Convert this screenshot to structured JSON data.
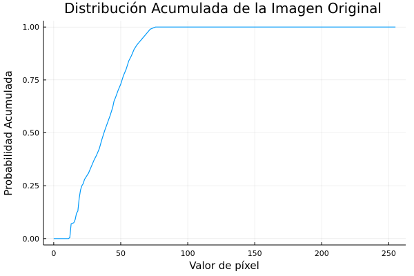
{
  "chart_data": {
    "type": "line",
    "title": "Distribución Acumulada de la Imagen Original",
    "xlabel": "Valor de píxel",
    "ylabel": "Probabilidad Acumulada",
    "xlim": [
      -7.65,
      262.65
    ],
    "ylim": [
      -0.03,
      1.03
    ],
    "xticks": [
      0,
      50,
      100,
      150,
      200,
      250
    ],
    "xtick_labels": [
      "0",
      "50",
      "100",
      "150",
      "200",
      "250"
    ],
    "yticks": [
      0,
      0.25,
      0.5,
      0.75,
      1.0
    ],
    "ytick_labels": [
      "0.00",
      "0.25",
      "0.50",
      "0.75",
      "1.00"
    ],
    "grid": true,
    "legend": "none",
    "series": [
      {
        "name": "y1",
        "color": "#009AFA",
        "x": [
          0,
          11,
          12,
          13,
          15,
          16,
          17,
          18,
          19,
          20,
          21,
          22,
          23,
          24,
          25,
          26,
          27,
          28,
          30,
          32,
          34,
          36,
          38,
          40,
          42,
          44,
          45,
          46,
          48,
          50,
          52,
          54,
          56,
          58,
          60,
          62,
          64,
          66,
          68,
          70,
          72,
          74,
          76,
          78,
          80,
          100,
          150,
          200,
          255
        ],
        "y": [
          0,
          0,
          0.005,
          0.07,
          0.075,
          0.09,
          0.12,
          0.13,
          0.19,
          0.23,
          0.25,
          0.26,
          0.28,
          0.29,
          0.3,
          0.31,
          0.325,
          0.34,
          0.37,
          0.395,
          0.425,
          0.47,
          0.51,
          0.545,
          0.58,
          0.62,
          0.65,
          0.665,
          0.7,
          0.73,
          0.77,
          0.8,
          0.84,
          0.865,
          0.895,
          0.915,
          0.93,
          0.945,
          0.96,
          0.975,
          0.99,
          0.995,
          1.0,
          1.0,
          1.0,
          1.0,
          1.0,
          1.0,
          1.0
        ]
      }
    ]
  }
}
